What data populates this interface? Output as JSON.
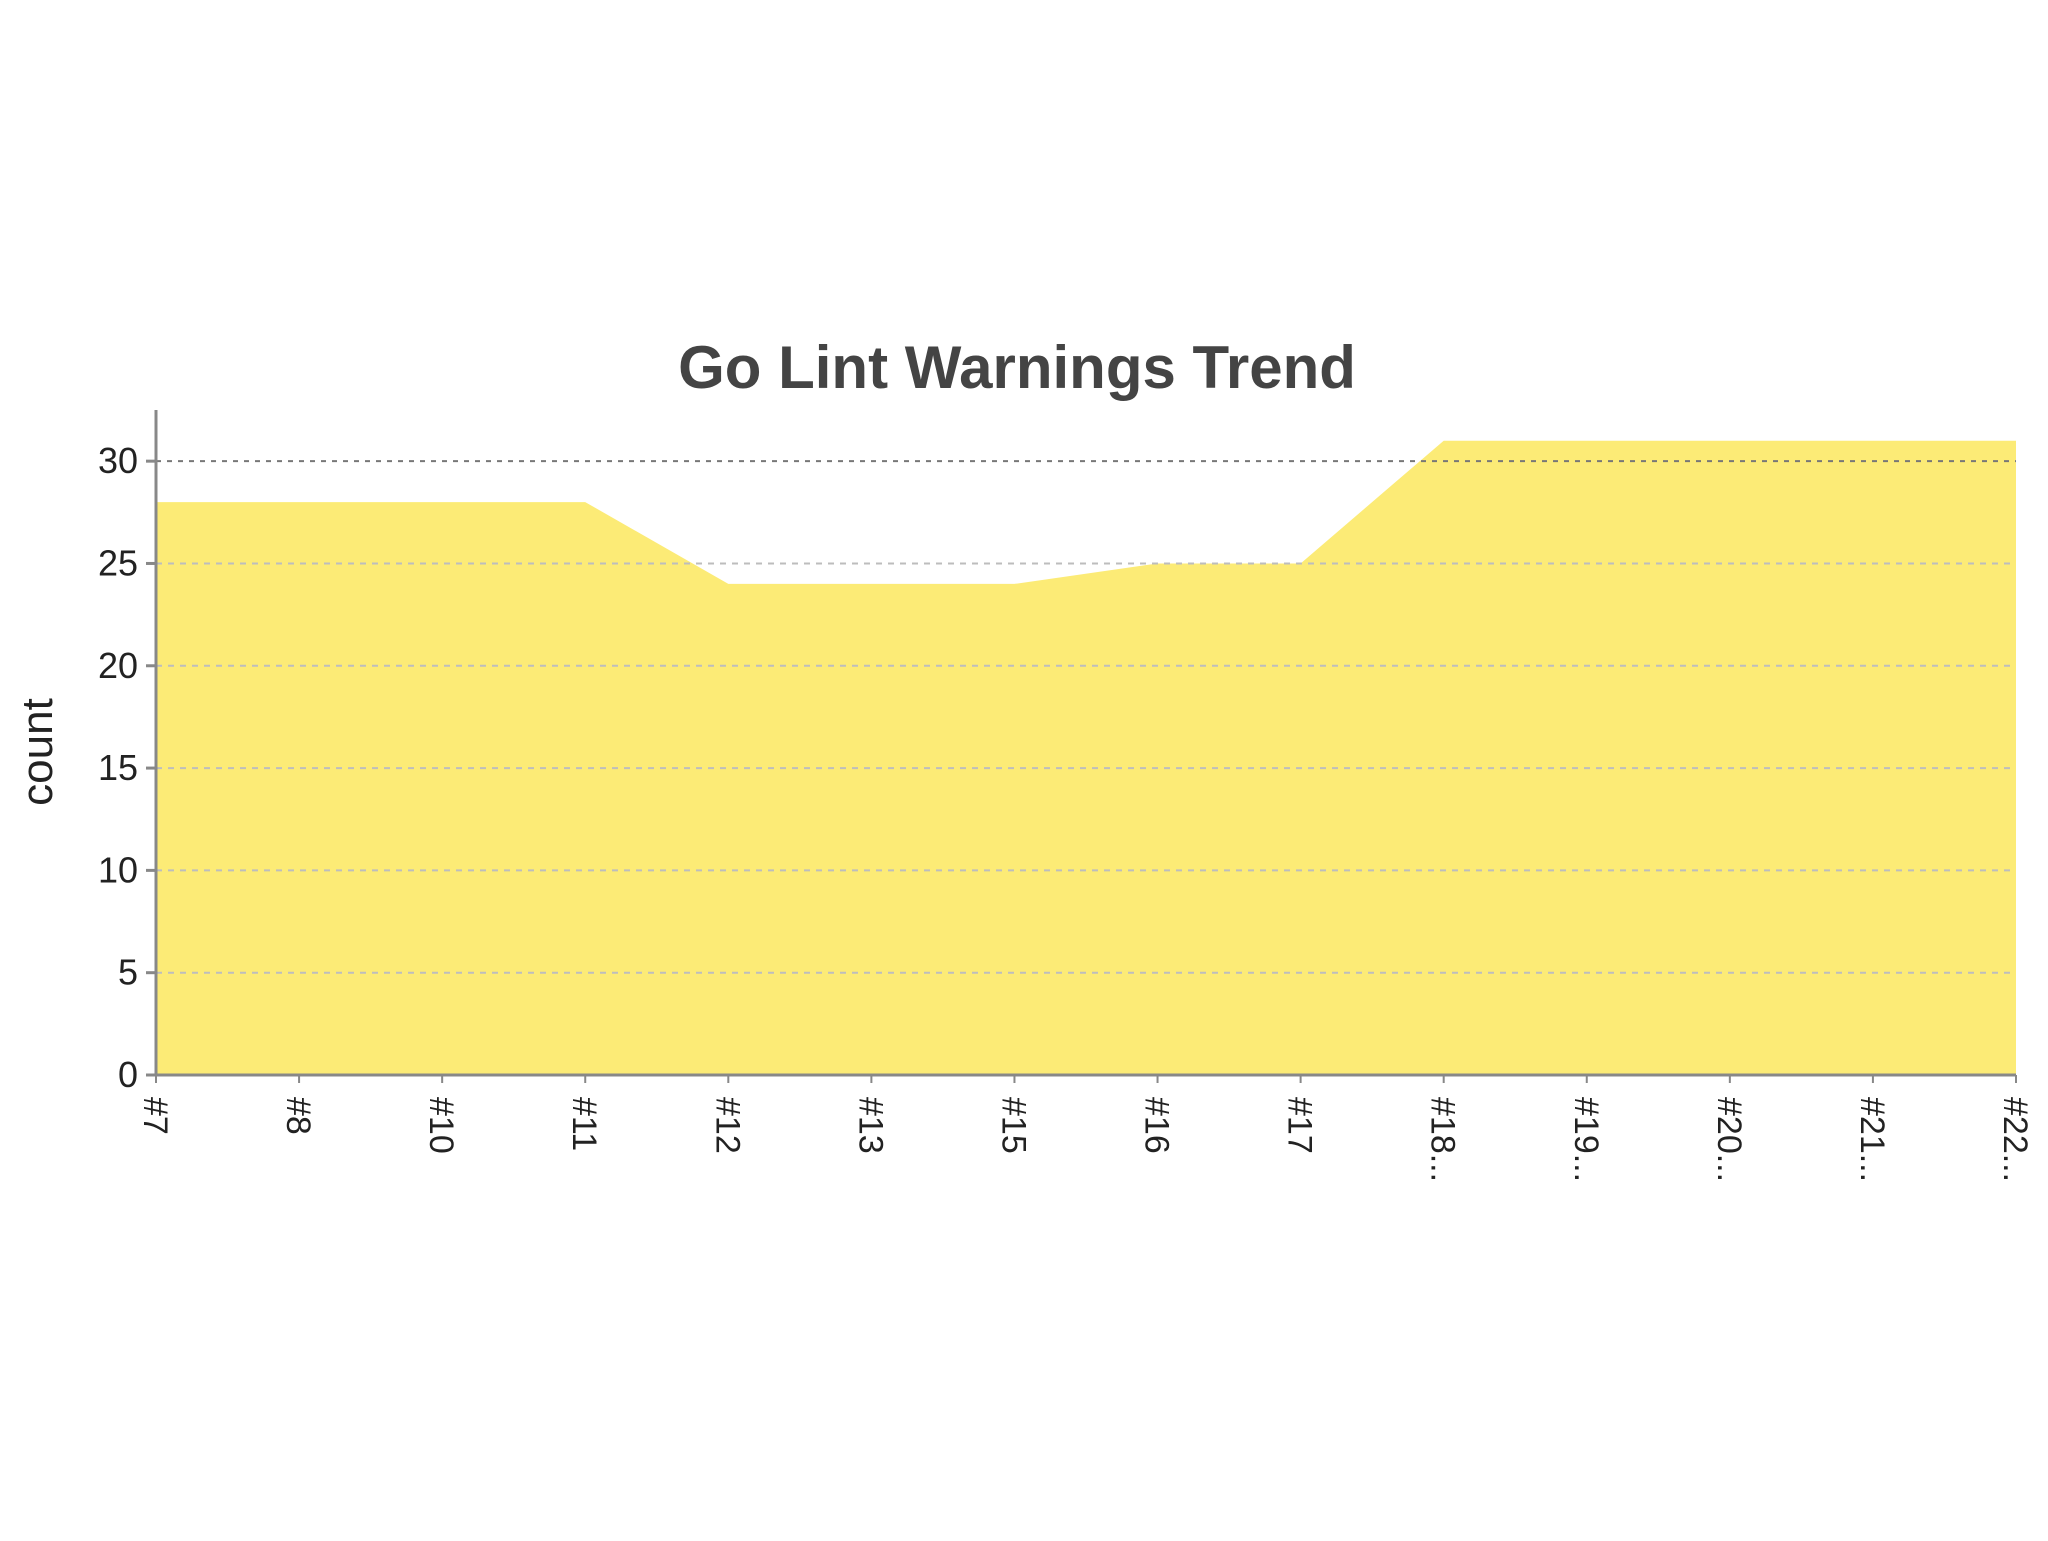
{
  "chart_data": {
    "type": "area",
    "title": "Go Lint Warnings Trend",
    "xlabel": "",
    "ylabel": "count",
    "categories": [
      "#7",
      "#8",
      "#10",
      "#11",
      "#12",
      "#13",
      "#15",
      "#16",
      "#17",
      "#18...",
      "#19...",
      "#20...",
      "#21...",
      "#22..."
    ],
    "series": [
      {
        "values": [
          28,
          28,
          28,
          28,
          24,
          24,
          24,
          25,
          25,
          31,
          31,
          31,
          31,
          31
        ],
        "color": "#fceb76"
      }
    ],
    "ylim": [
      0,
      32.5
    ],
    "yticks": [
      0,
      5,
      10,
      15,
      20,
      25,
      30
    ],
    "grid": true,
    "legend": "none"
  }
}
